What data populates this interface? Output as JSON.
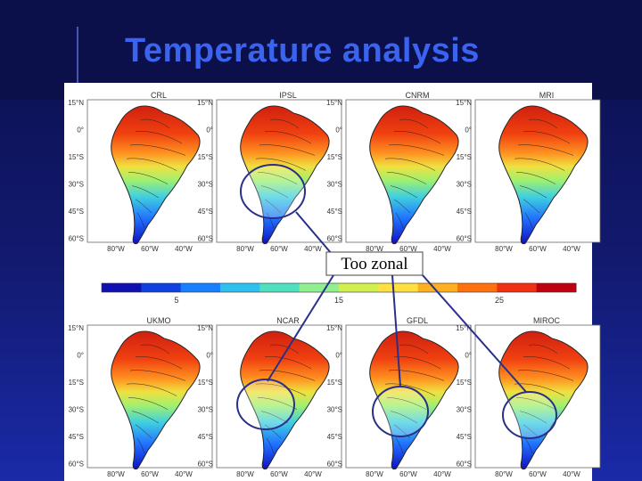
{
  "slide": {
    "title": "Temperature analysis",
    "annotation": "Too zonal"
  },
  "panels_top": [
    {
      "model": "CRL",
      "lat_labels": [
        "15°N",
        "0°",
        "15°S",
        "30°S",
        "45°S",
        "60°S"
      ],
      "lon_labels": [
        "80°W",
        "60°W",
        "40°W"
      ]
    },
    {
      "model": "IPSL",
      "lat_labels": [
        "15°N",
        "0°",
        "15°S",
        "30°S",
        "45°S",
        "60°S"
      ],
      "lon_labels": [
        "80°W",
        "60°W",
        "40°W"
      ]
    },
    {
      "model": "CNRM",
      "lat_labels": [
        "15°N",
        "0°",
        "15°S",
        "30°S",
        "45°S",
        "60°S"
      ],
      "lon_labels": [
        "80°W",
        "60°W",
        "40°W"
      ]
    },
    {
      "model": "MRI",
      "lat_labels": [
        "15°N",
        "0°",
        "15°S",
        "30°S",
        "45°S",
        "60°S"
      ],
      "lon_labels": [
        "80°W",
        "60°W",
        "40°W"
      ]
    }
  ],
  "panels_bottom": [
    {
      "model": "UKMO",
      "lat_labels": [
        "15°N",
        "0°",
        "15°S",
        "30°S",
        "45°S",
        "60°S"
      ],
      "lon_labels": [
        "80°W",
        "60°W",
        "40°W"
      ]
    },
    {
      "model": "NCAR",
      "lat_labels": [
        "15°N",
        "0°",
        "15°S",
        "30°S",
        "45°S",
        "60°S"
      ],
      "lon_labels": [
        "80°W",
        "60°W",
        "40°W"
      ]
    },
    {
      "model": "GFDL",
      "lat_labels": [
        "15°N",
        "0°",
        "15°S",
        "30°S",
        "45°S",
        "60°S"
      ],
      "lon_labels": [
        "80°W",
        "60°W",
        "40°W"
      ]
    },
    {
      "model": "MIROC",
      "lat_labels": [
        "15°N",
        "0°",
        "15°S",
        "30°S",
        "45°S",
        "60°S"
      ],
      "lon_labels": [
        "80°W",
        "60°W",
        "40°W"
      ]
    }
  ],
  "colorbar": {
    "tick_labels": [
      "5",
      "15",
      "25"
    ],
    "colors": [
      "#1010b0",
      "#1040e0",
      "#1880ff",
      "#30c0f0",
      "#50e0c0",
      "#90f090",
      "#d0f050",
      "#ffe040",
      "#ffb020",
      "#ff7010",
      "#f03010",
      "#c00010"
    ]
  },
  "highlight_color": "#2a2f8a"
}
